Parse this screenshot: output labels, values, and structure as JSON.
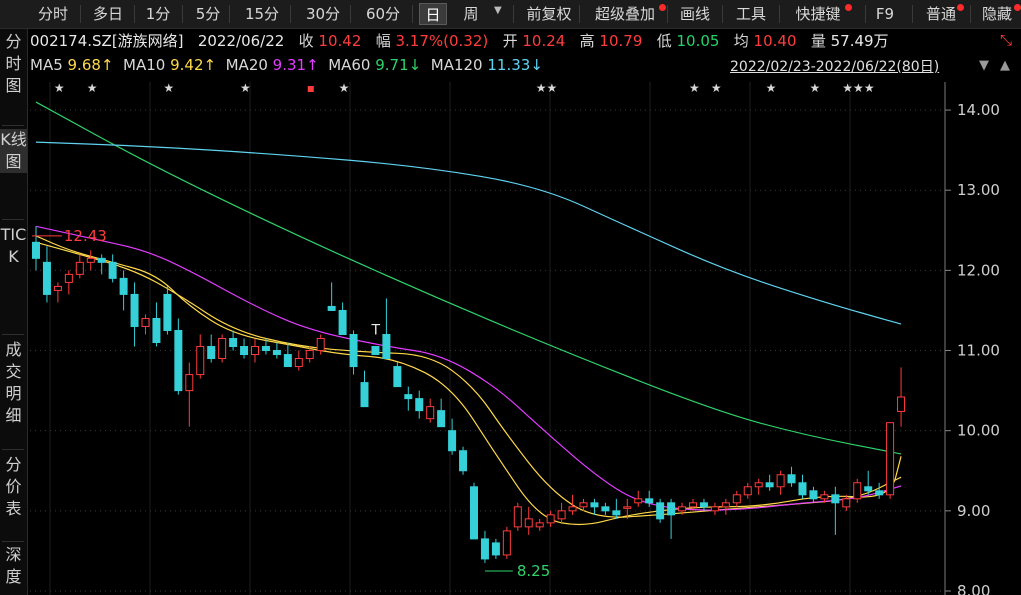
{
  "toolbar": {
    "period_tabs": [
      "分时",
      "多日",
      "1分",
      "5分",
      "15分",
      "30分",
      "60分",
      "日",
      "周"
    ],
    "active_tab": "日",
    "tools": [
      "前复权",
      "超级叠加",
      "画线",
      "工具",
      "快捷键",
      "F9",
      "普通",
      "隐藏"
    ]
  },
  "sidebar": [
    "分时图",
    "K线图",
    "TICK",
    "成交明细",
    "分价表",
    "深度"
  ],
  "quote": {
    "code_name": "002174.SZ[游族网络]",
    "date": "2022/06/22",
    "close_label": "收",
    "close": "10.42",
    "change_label": "幅",
    "change": "3.17%(0.32)",
    "open_label": "开",
    "open": "10.24",
    "high_label": "高",
    "high": "10.79",
    "low_label": "低",
    "low": "10.05",
    "avg_label": "均",
    "avg": "10.40",
    "volume_label": "量",
    "volume": "57.49万"
  },
  "ma_legend": [
    {
      "label": "MA5",
      "value": "9.68↑",
      "color": "#ffd84a"
    },
    {
      "label": "MA10",
      "value": "9.42↑",
      "color": "#ffd84a"
    },
    {
      "label": "MA20",
      "value": "9.31↑",
      "color": "#e23cff"
    },
    {
      "label": "MA60",
      "value": "9.71↓",
      "color": "#2fd36a"
    },
    {
      "label": "MA120",
      "value": "11.33↓",
      "color": "#5fd3f0"
    }
  ],
  "range": "2022/02/23-2022/06/22(80日)",
  "chart_data": {
    "type": "candlestick",
    "y_ticks": [
      "14.00",
      "13.00",
      "12.00",
      "11.00",
      "10.00",
      "9.00",
      "8.00"
    ],
    "ylim": [
      7.95,
      14.35
    ],
    "colors": {
      "up": "#ff3c3c",
      "down": "#35d0d8",
      "grid": "#3a3a3a"
    },
    "annotations": [
      {
        "text": "12.43",
        "price": 12.43,
        "color": "#ff3c3c"
      },
      {
        "text": "8.25",
        "price": 8.25,
        "color": "#2fd36a"
      }
    ],
    "candles": [
      [
        12.35,
        12.55,
        12.0,
        12.15
      ],
      [
        12.1,
        12.3,
        11.6,
        11.7
      ],
      [
        11.75,
        11.85,
        11.6,
        11.8
      ],
      [
        11.85,
        12.0,
        11.7,
        11.95
      ],
      [
        11.95,
        12.2,
        11.9,
        12.1
      ],
      [
        12.1,
        12.25,
        12.0,
        12.15
      ],
      [
        12.15,
        12.2,
        11.95,
        12.1
      ],
      [
        12.1,
        12.2,
        11.85,
        11.9
      ],
      [
        11.9,
        12.0,
        11.5,
        11.7
      ],
      [
        11.7,
        11.85,
        11.05,
        11.3
      ],
      [
        11.3,
        11.45,
        11.2,
        11.4
      ],
      [
        11.4,
        11.6,
        11.05,
        11.1
      ],
      [
        11.7,
        11.8,
        11.2,
        11.25
      ],
      [
        11.25,
        11.4,
        10.45,
        10.5
      ],
      [
        10.5,
        10.85,
        10.05,
        10.7
      ],
      [
        10.7,
        11.2,
        10.65,
        11.05
      ],
      [
        11.05,
        11.2,
        10.85,
        10.9
      ],
      [
        10.9,
        11.2,
        10.85,
        11.15
      ],
      [
        11.15,
        11.25,
        11.0,
        11.05
      ],
      [
        11.05,
        11.15,
        10.9,
        10.95
      ],
      [
        10.95,
        11.15,
        10.85,
        11.05
      ],
      [
        11.05,
        11.15,
        10.95,
        11.0
      ],
      [
        11.0,
        11.1,
        10.9,
        10.95
      ],
      [
        10.95,
        11.1,
        10.8,
        10.8
      ],
      [
        10.8,
        11.0,
        10.75,
        10.9
      ],
      [
        10.9,
        11.05,
        10.85,
        11.0
      ],
      [
        11.0,
        11.2,
        10.95,
        11.15
      ],
      [
        11.55,
        11.85,
        11.5,
        11.5
      ],
      [
        11.5,
        11.6,
        11.25,
        11.2
      ],
      [
        11.2,
        11.25,
        10.7,
        10.8
      ],
      [
        10.6,
        10.75,
        10.3,
        10.3
      ],
      [
        11.05,
        11.05,
        10.95,
        10.95
      ],
      [
        11.2,
        11.65,
        10.9,
        10.9
      ],
      [
        10.8,
        10.85,
        10.55,
        10.55
      ],
      [
        10.45,
        10.55,
        10.25,
        10.4
      ],
      [
        10.4,
        10.5,
        10.15,
        10.25
      ],
      [
        10.15,
        10.4,
        10.1,
        10.3
      ],
      [
        10.25,
        10.4,
        10.05,
        10.05
      ],
      [
        10.0,
        10.15,
        9.7,
        9.75
      ],
      [
        9.75,
        9.8,
        9.45,
        9.5
      ],
      [
        9.3,
        9.35,
        8.65,
        8.65
      ],
      [
        8.65,
        8.75,
        8.35,
        8.4
      ],
      [
        8.6,
        8.65,
        8.4,
        8.45
      ],
      [
        8.45,
        8.8,
        8.4,
        8.75
      ],
      [
        8.8,
        9.1,
        8.75,
        9.05
      ],
      [
        8.8,
        9.05,
        8.7,
        8.9
      ],
      [
        8.8,
        8.9,
        8.75,
        8.85
      ],
      [
        8.85,
        9.0,
        8.8,
        8.95
      ],
      [
        8.9,
        9.1,
        8.85,
        9.0
      ],
      [
        9.0,
        9.2,
        8.95,
        9.05
      ],
      [
        9.05,
        9.15,
        9.0,
        9.1
      ],
      [
        9.1,
        9.15,
        8.95,
        9.05
      ],
      [
        9.05,
        9.1,
        8.95,
        9.0
      ],
      [
        9.0,
        9.15,
        8.9,
        8.95
      ],
      [
        9.05,
        9.15,
        8.9,
        9.05
      ],
      [
        9.1,
        9.25,
        9.05,
        9.15
      ],
      [
        9.15,
        9.25,
        9.05,
        9.1
      ],
      [
        9.1,
        9.15,
        8.85,
        8.9
      ],
      [
        9.1,
        9.15,
        8.65,
        8.95
      ],
      [
        9.0,
        9.1,
        8.95,
        9.05
      ],
      [
        9.05,
        9.15,
        9.0,
        9.1
      ],
      [
        9.1,
        9.15,
        9.0,
        9.05
      ],
      [
        9.0,
        9.1,
        8.95,
        9.05
      ],
      [
        9.05,
        9.15,
        8.95,
        9.1
      ],
      [
        9.1,
        9.25,
        9.05,
        9.2
      ],
      [
        9.2,
        9.35,
        9.15,
        9.3
      ],
      [
        9.3,
        9.4,
        9.2,
        9.35
      ],
      [
        9.35,
        9.45,
        9.25,
        9.3
      ],
      [
        9.3,
        9.5,
        9.2,
        9.45
      ],
      [
        9.45,
        9.55,
        9.3,
        9.35
      ],
      [
        9.35,
        9.45,
        9.15,
        9.2
      ],
      [
        9.25,
        9.3,
        9.1,
        9.15
      ],
      [
        9.15,
        9.25,
        9.1,
        9.2
      ],
      [
        9.2,
        9.3,
        8.7,
        9.1
      ],
      [
        9.05,
        9.2,
        9.0,
        9.15
      ],
      [
        9.15,
        9.4,
        9.1,
        9.35
      ],
      [
        9.3,
        9.5,
        9.2,
        9.25
      ],
      [
        9.25,
        9.35,
        9.15,
        9.2
      ],
      [
        9.2,
        10.1,
        9.15,
        10.1
      ],
      [
        10.24,
        10.79,
        10.05,
        10.42
      ]
    ],
    "ma_lines": [
      {
        "name": "MA5",
        "color": "#ffd84a",
        "points": [
          [
            12.43,
            0
          ],
          [
            12.25,
            3
          ],
          [
            12.1,
            7
          ],
          [
            11.95,
            11
          ],
          [
            11.55,
            14
          ],
          [
            11.2,
            18
          ],
          [
            11.05,
            24
          ],
          [
            10.95,
            28
          ],
          [
            10.9,
            33
          ],
          [
            10.55,
            38
          ],
          [
            9.7,
            42
          ],
          [
            8.9,
            46
          ],
          [
            8.8,
            50
          ],
          [
            8.95,
            54
          ],
          [
            9.05,
            60
          ],
          [
            9.05,
            66
          ],
          [
            9.2,
            72
          ],
          [
            9.15,
            78
          ],
          [
            9.68,
            79
          ]
        ]
      },
      {
        "name": "MA10",
        "color": "#ffd84a",
        "points": [
          [
            12.35,
            0
          ],
          [
            12.2,
            4
          ],
          [
            12.0,
            9
          ],
          [
            11.7,
            13
          ],
          [
            11.25,
            18
          ],
          [
            11.05,
            24
          ],
          [
            10.98,
            30
          ],
          [
            10.95,
            36
          ],
          [
            10.55,
            40
          ],
          [
            9.95,
            43
          ],
          [
            9.25,
            47
          ],
          [
            8.9,
            51
          ],
          [
            8.95,
            57
          ],
          [
            9.02,
            63
          ],
          [
            9.08,
            69
          ],
          [
            9.15,
            75
          ],
          [
            9.42,
            79
          ]
        ]
      },
      {
        "name": "MA20",
        "color": "#e23cff",
        "points": [
          [
            12.55,
            0
          ],
          [
            12.4,
            5
          ],
          [
            12.25,
            10
          ],
          [
            12.0,
            14
          ],
          [
            11.55,
            20
          ],
          [
            11.25,
            25
          ],
          [
            11.05,
            32
          ],
          [
            10.95,
            37
          ],
          [
            10.55,
            42
          ],
          [
            10.05,
            46
          ],
          [
            9.45,
            51
          ],
          [
            9.1,
            55
          ],
          [
            9.0,
            60
          ],
          [
            9.02,
            65
          ],
          [
            9.1,
            70
          ],
          [
            9.15,
            75
          ],
          [
            9.31,
            79
          ]
        ]
      },
      {
        "name": "MA60",
        "color": "#2fd36a",
        "points": [
          [
            14.1,
            0
          ],
          [
            13.35,
            10
          ],
          [
            12.55,
            22
          ],
          [
            11.75,
            35
          ],
          [
            11.0,
            48
          ],
          [
            10.25,
            62
          ],
          [
            9.95,
            70
          ],
          [
            9.71,
            79
          ]
        ]
      },
      {
        "name": "MA120",
        "color": "#5fd3f0",
        "points": [
          [
            13.6,
            0
          ],
          [
            13.55,
            10
          ],
          [
            13.45,
            22
          ],
          [
            13.3,
            35
          ],
          [
            13.05,
            46
          ],
          [
            12.55,
            54
          ],
          [
            12.0,
            63
          ],
          [
            11.6,
            72
          ],
          [
            11.33,
            79
          ]
        ]
      }
    ],
    "star_markers": [
      "★",
      "★",
      "★",
      "★",
      "★",
      "★★",
      "★",
      "★",
      "★",
      "★",
      "★★★"
    ]
  }
}
